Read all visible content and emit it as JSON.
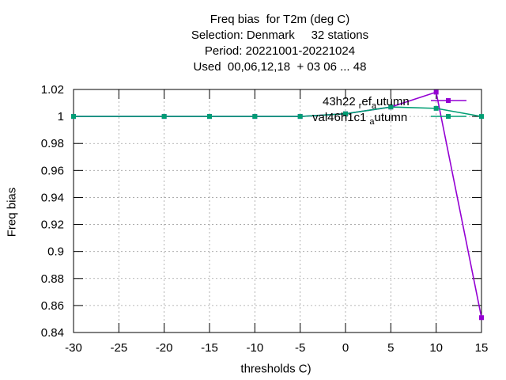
{
  "title_lines": [
    "Freq bias  for T2m (deg C)",
    "Selection: Denmark     32 stations",
    "Period: 20221001-20221024",
    "Used  00,06,12,18  + 03 06 ... 48"
  ],
  "chart_data": {
    "type": "line",
    "xlabel": "thresholds C)",
    "ylabel": "Freq bias",
    "xlim": [
      -30,
      15
    ],
    "ylim": [
      0.84,
      1.02
    ],
    "xticks": [
      "-30",
      "-25",
      "-20",
      "-15",
      "-10",
      "-5",
      "0",
      "5",
      "10",
      "15"
    ],
    "yticks": [
      "0.84",
      "0.86",
      "0.88",
      "0.9",
      "0.92",
      "0.94",
      "0.96",
      "0.98",
      "1",
      "1.02"
    ],
    "grid": true,
    "legend_position": "top-right",
    "series": [
      {
        "name": "43h22 ref autumn",
        "legend_text": {
          "a": "43h22",
          "b": "r",
          "c": "ef",
          "d": "a",
          "e": "utumn"
        },
        "color": "#9400d3",
        "points": [
          [
            -30,
            1.0
          ],
          [
            -20,
            1.0
          ],
          [
            -15,
            1.0
          ],
          [
            -10,
            1.0
          ],
          [
            -5,
            1.0
          ],
          [
            0,
            1.002
          ],
          [
            5,
            1.007
          ],
          [
            10,
            1.018
          ],
          [
            15,
            0.851
          ]
        ]
      },
      {
        "name": "val46h1c1 autumn",
        "legend_text": {
          "a": "val46h1c1",
          "b": "",
          "c": "",
          "d": "a",
          "e": "utumn"
        },
        "color": "#009e73",
        "points": [
          [
            -30,
            1.0
          ],
          [
            -20,
            1.0
          ],
          [
            -15,
            1.0
          ],
          [
            -10,
            1.0
          ],
          [
            -5,
            1.0
          ],
          [
            0,
            1.002
          ],
          [
            5,
            1.007
          ],
          [
            10,
            1.006
          ],
          [
            15,
            1.0
          ]
        ]
      }
    ]
  }
}
